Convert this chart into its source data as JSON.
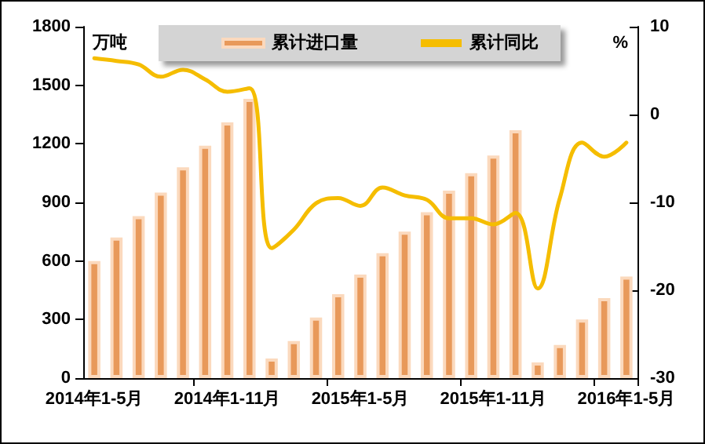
{
  "chart_data": {
    "type": "bar",
    "ylabel": "万吨",
    "y2label": "%",
    "categories": [
      "2014年1-5月",
      null,
      null,
      null,
      null,
      null,
      "2014年1-11月",
      null,
      null,
      null,
      null,
      null,
      "2015年1-5月",
      null,
      null,
      null,
      null,
      null,
      "2015年1-11月",
      null,
      null,
      null,
      null,
      null,
      "2016年1-5月"
    ],
    "series": [
      {
        "name": "累计进口量",
        "color": "#e8995a",
        "values": [
          600,
          720,
          830,
          950,
          1080,
          1190,
          1310,
          1430,
          100,
          190,
          310,
          430,
          530,
          640,
          750,
          850,
          960,
          1050,
          1140,
          1270,
          80,
          170,
          300,
          410,
          520
        ]
      },
      {
        "name": "累计同比",
        "type": "line",
        "axis": "y2",
        "color": "#f5bd00",
        "values": [
          6.4,
          6.1,
          5.7,
          4.3,
          5.1,
          4.0,
          2.6,
          3.0,
          -15.2,
          -13.1,
          -10.1,
          -9.5,
          -10.4,
          -8.3,
          -9.2,
          -9.7,
          -11.8,
          -11.8,
          -12.5,
          -11.2,
          -19.8,
          -9.5,
          -3.2,
          -4.8,
          -3.2
        ]
      }
    ],
    "ylim": [
      0,
      1800
    ],
    "yticks": [
      0,
      300,
      600,
      900,
      1200,
      1500,
      1800
    ],
    "y2lim": [
      -30,
      10
    ],
    "y2ticks": [
      -30,
      -20,
      -10,
      0,
      10
    ],
    "legend": "top",
    "grid": false,
    "marker": "none",
    "line_style": "solid"
  }
}
